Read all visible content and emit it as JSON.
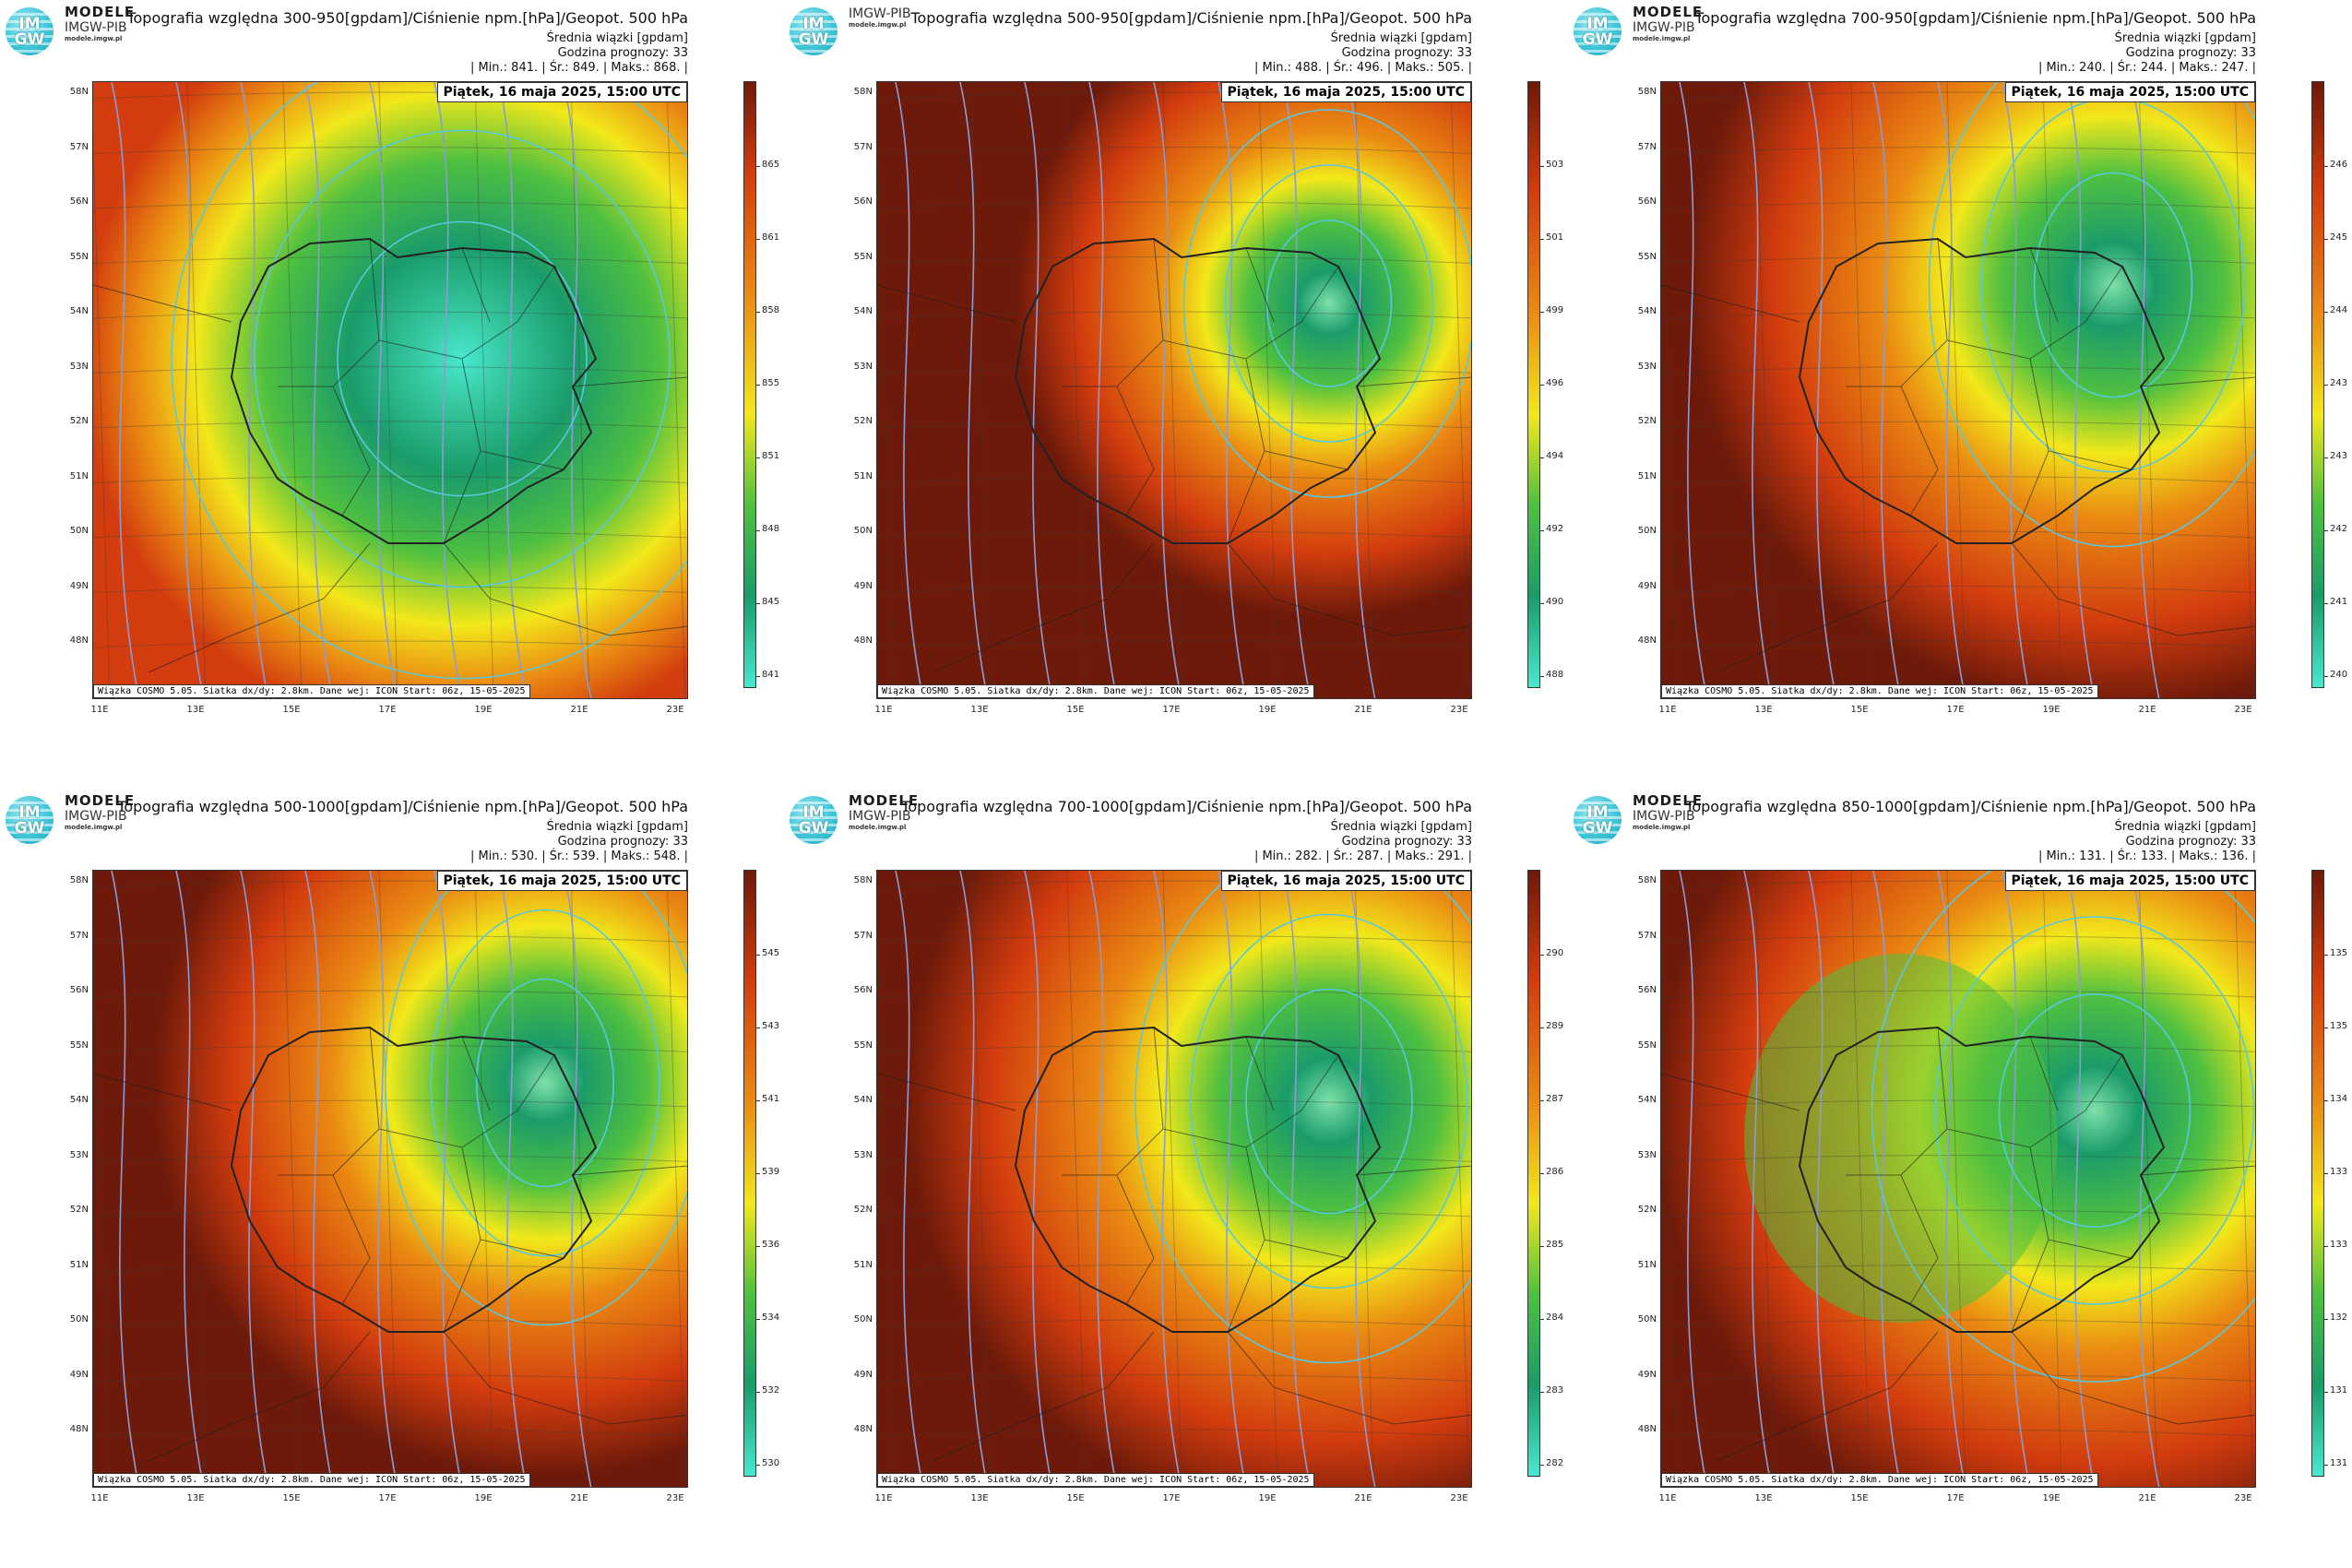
{
  "panels": [
    {
      "logo": "IM GW",
      "brand": {
        "name": "MODELE",
        "sub": "IMGW-PIB",
        "url": "modele.imgw.pl"
      },
      "title": "Topografia względna 300-950[gpdam]/Ciśnienie npm.[hPa]/Geopot. 500 hPa",
      "sub1": "Średnia wiązki [gpdam]",
      "sub2": "Godzina prognozy: 33",
      "stats": "| Min.:    841. | Śr.:    849. | Maks.:    868. |",
      "date": "Piątek, 16 maja 2025, 15:00 UTC",
      "footer": "Wiązka COSMO 5.05. Siatka dx/dy: 2.8km. Dane wej: ICON Start: 06z, 15-05-2025",
      "colorbar_labels": [
        "865",
        "861",
        "858",
        "855",
        "851",
        "848",
        "845",
        "841"
      ]
    },
    {
      "logo": "IM GW",
      "brand": {
        "name": "",
        "sub": "IMGW-PIB",
        "url": "modele.imgw.pl"
      },
      "title": "Topografia względna 500-950[gpdam]/Ciśnienie npm.[hPa]/Geopot. 500 hPa",
      "sub1": "Średnia wiązki [gpdam]",
      "sub2": "Godzina prognozy: 33",
      "stats": "| Min.:    488. | Śr.:    496. | Maks.:    505. |",
      "date": "Piątek, 16 maja 2025, 15:00 UTC",
      "footer": "Wiązka COSMO 5.05. Siatka dx/dy: 2.8km. Dane wej: ICON Start: 06z, 15-05-2025",
      "colorbar_labels": [
        "503",
        "501",
        "499",
        "496",
        "494",
        "492",
        "490",
        "488"
      ]
    },
    {
      "logo": "IM GW",
      "brand": {
        "name": "MODELE",
        "sub": "IMGW-PIB",
        "url": "modele.imgw.pl"
      },
      "title": "Topografia względna 700-950[gpdam]/Ciśnienie npm.[hPa]/Geopot. 500 hPa",
      "sub1": "Średnia wiązki [gpdam]",
      "sub2": "Godzina prognozy: 33",
      "stats": "| Min.:    240. | Śr.:    244. | Maks.:    247. |",
      "date": "Piątek, 16 maja 2025, 15:00 UTC",
      "footer": "Wiązka COSMO 5.05. Siatka dx/dy: 2.8km. Dane wej: ICON Start: 06z, 15-05-2025",
      "colorbar_labels": [
        "246",
        "245",
        "244",
        "243",
        "243",
        "242",
        "241",
        "240"
      ]
    },
    {
      "logo": "IM GW",
      "brand": {
        "name": "MODELE",
        "sub": "IMGW-PIB",
        "url": "modele.imgw.pl"
      },
      "title": "Topografia względna 500-1000[gpdam]/Ciśnienie npm.[hPa]/Geopot. 500 hPa",
      "sub1": "Średnia wiązki [gpdam]",
      "sub2": "Godzina prognozy: 33",
      "stats": "| Min.:    530. | Śr.:    539. | Maks.:    548. |",
      "date": "Piątek, 16 maja 2025, 15:00 UTC",
      "footer": "Wiązka COSMO 5.05. Siatka dx/dy: 2.8km. Dane wej: ICON Start: 06z, 15-05-2025",
      "colorbar_labels": [
        "545",
        "543",
        "541",
        "539",
        "536",
        "534",
        "532",
        "530"
      ]
    },
    {
      "logo": "IM GW",
      "brand": {
        "name": "MODELE",
        "sub": "IMGW-PIB",
        "url": "modele.imgw.pl"
      },
      "title": "Topografia względna 700-1000[gpdam]/Ciśnienie npm.[hPa]/Geopot. 500 hPa",
      "sub1": "Średnia wiązki [gpdam]",
      "sub2": "Godzina prognozy: 33",
      "stats": "| Min.:    282. | Śr.:    287. | Maks.:    291. |",
      "date": "Piątek, 16 maja 2025, 15:00 UTC",
      "footer": "Wiązka COSMO 5.05. Siatka dx/dy: 2.8km. Dane wej: ICON Start: 06z, 15-05-2025",
      "colorbar_labels": [
        "290",
        "289",
        "287",
        "286",
        "285",
        "284",
        "283",
        "282"
      ]
    },
    {
      "logo": "IM GW",
      "brand": {
        "name": "MODELE",
        "sub": "IMGW-PIB",
        "url": "modele.imgw.pl"
      },
      "title": "Topografia względna 850-1000[gpdam]/Ciśnienie npm.[hPa]/Geopot. 500 hPa",
      "sub1": "Średnia wiązki [gpdam]",
      "sub2": "Godzina prognozy: 33",
      "stats": "| Min.:    131. | Śr.:    133. | Maks.:    136. |",
      "date": "Piątek, 16 maja 2025, 15:00 UTC",
      "footer": "Wiązka COSMO 5.05. Siatka dx/dy: 2.8km. Dane wej: ICON Start: 06z, 15-05-2025",
      "colorbar_labels": [
        "135",
        "135",
        "134",
        "133",
        "133",
        "132",
        "131",
        "131"
      ]
    }
  ],
  "lat_labels": [
    "58N",
    "57N",
    "56N",
    "55N",
    "54N",
    "53N",
    "52N",
    "51N",
    "50N",
    "49N",
    "48N"
  ],
  "lon_labels": [
    "11E",
    "13E",
    "15E",
    "17E",
    "19E",
    "21E",
    "23E"
  ],
  "colors": {
    "low": "#48e8d0",
    "green_dark": "#1a9c6a",
    "green": "#4fc040",
    "yellow": "#f2e81a",
    "orange": "#ea8a12",
    "red": "#d23c0e",
    "dark_red": "#6e1a0a",
    "isobar": "#8c9cd2",
    "geopot": "#58c8de",
    "border": "#222222"
  }
}
